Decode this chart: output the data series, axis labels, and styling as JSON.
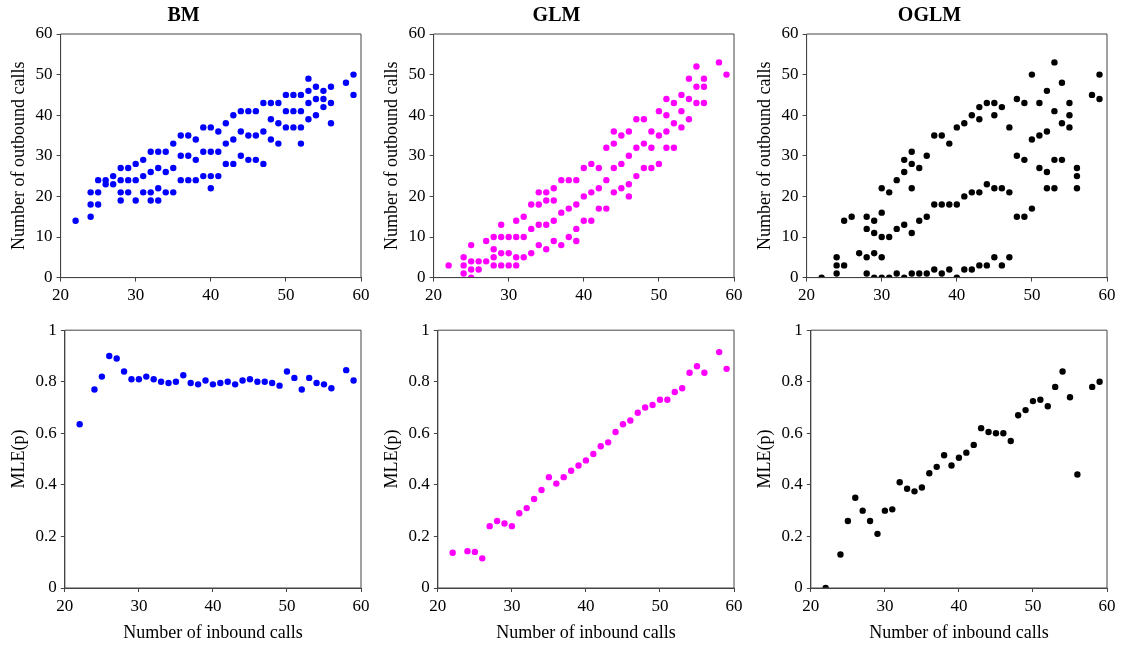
{
  "chart_data": [
    {
      "type": "scatter",
      "title": "BM",
      "ylabel": "Number of outbound calls",
      "marker": "circle",
      "xlim": [
        20,
        60
      ],
      "xticks": [
        20,
        30,
        40,
        50,
        60
      ],
      "ylim": [
        0,
        60
      ],
      "yticks": [
        0,
        10,
        20,
        30,
        40,
        50,
        60
      ],
      "series": [
        {
          "color": "#0000ff",
          "x": [
            22,
            24,
            24,
            24,
            25,
            25,
            25,
            26,
            26,
            27,
            27,
            28,
            28,
            28,
            28,
            29,
            29,
            29,
            30,
            30,
            30,
            31,
            31,
            31,
            32,
            32,
            32,
            32,
            33,
            33,
            33,
            33,
            34,
            34,
            34,
            35,
            35,
            35,
            36,
            36,
            36,
            37,
            37,
            37,
            38,
            38,
            38,
            39,
            39,
            39,
            40,
            40,
            40,
            40,
            41,
            41,
            41,
            42,
            42,
            42,
            43,
            43,
            43,
            44,
            44,
            44,
            45,
            45,
            45,
            46,
            46,
            46,
            47,
            47,
            47,
            48,
            48,
            48,
            49,
            49,
            49,
            50,
            50,
            50,
            51,
            51,
            51,
            52,
            52,
            52,
            52,
            53,
            53,
            53,
            53,
            54,
            54,
            54,
            55,
            55,
            55,
            56,
            56,
            56,
            58,
            59,
            59
          ],
          "values": [
            14,
            15,
            18,
            21,
            18,
            21,
            24,
            23,
            24,
            23,
            25,
            19,
            21,
            24,
            27,
            21,
            24,
            27,
            19,
            24,
            28,
            21,
            25,
            29,
            19,
            21,
            26,
            31,
            19,
            22,
            27,
            31,
            21,
            26,
            31,
            21,
            27,
            33,
            24,
            30,
            35,
            24,
            30,
            35,
            24,
            29,
            34,
            25,
            31,
            37,
            22,
            25,
            31,
            37,
            25,
            31,
            36,
            28,
            33,
            38,
            28,
            34,
            40,
            30,
            36,
            41,
            29,
            35,
            41,
            29,
            35,
            41,
            28,
            36,
            43,
            34,
            39,
            43,
            33,
            38,
            43,
            37,
            41,
            45,
            37,
            41,
            45,
            33,
            37,
            41,
            45,
            39,
            43,
            46,
            49,
            40,
            44,
            47,
            42,
            44,
            46,
            38,
            43,
            47,
            48,
            45,
            50
          ]
        }
      ]
    },
    {
      "type": "scatter",
      "title": "GLM",
      "ylabel": "Number of outbound calls",
      "marker": "circle",
      "xlim": [
        20,
        60
      ],
      "xticks": [
        20,
        30,
        40,
        50,
        60
      ],
      "ylim": [
        0,
        60
      ],
      "yticks": [
        0,
        10,
        20,
        30,
        40,
        50,
        60
      ],
      "series": [
        {
          "color": "#ff00ff",
          "x": [
            22,
            24,
            24,
            24,
            25,
            25,
            25,
            25,
            26,
            26,
            27,
            27,
            28,
            28,
            28,
            28,
            29,
            29,
            29,
            29,
            30,
            30,
            30,
            31,
            31,
            31,
            31,
            32,
            32,
            32,
            33,
            33,
            33,
            34,
            34,
            34,
            34,
            35,
            35,
            35,
            35,
            36,
            36,
            36,
            36,
            37,
            37,
            37,
            38,
            38,
            38,
            39,
            39,
            39,
            39,
            40,
            40,
            40,
            41,
            41,
            41,
            42,
            42,
            42,
            43,
            43,
            43,
            44,
            44,
            44,
            44,
            45,
            45,
            45,
            46,
            46,
            46,
            46,
            47,
            47,
            47,
            48,
            48,
            48,
            49,
            49,
            49,
            50,
            50,
            50,
            51,
            51,
            51,
            51,
            52,
            52,
            52,
            53,
            53,
            53,
            54,
            54,
            54,
            55,
            55,
            55,
            56,
            56,
            56,
            58,
            59
          ],
          "values": [
            3,
            1,
            3,
            5,
            0,
            2,
            4,
            8,
            2,
            4,
            4,
            9,
            3,
            5,
            7,
            10,
            3,
            6,
            10,
            13,
            3,
            6,
            10,
            3,
            5,
            10,
            14,
            5,
            10,
            15,
            6,
            12,
            18,
            8,
            13,
            18,
            21,
            7,
            13,
            19,
            21,
            9,
            14,
            19,
            22,
            8,
            16,
            24,
            10,
            17,
            24,
            9,
            12,
            18,
            24,
            14,
            20,
            27,
            14,
            21,
            28,
            17,
            22,
            27,
            17,
            24,
            32,
            21,
            27,
            33,
            36,
            22,
            28,
            35,
            20,
            23,
            30,
            36,
            25,
            32,
            39,
            27,
            33,
            39,
            27,
            32,
            36,
            28,
            35,
            41,
            32,
            36,
            40,
            44,
            32,
            38,
            43,
            37,
            41,
            45,
            39,
            44,
            49,
            43,
            47,
            52,
            43,
            47,
            49,
            53,
            50
          ]
        }
      ]
    },
    {
      "type": "scatter",
      "title": "OGLM",
      "ylabel": "Number of outbound calls",
      "marker": "circle",
      "xlim": [
        20,
        60
      ],
      "xticks": [
        20,
        30,
        40,
        50,
        60
      ],
      "ylim": [
        0,
        60
      ],
      "yticks": [
        0,
        10,
        20,
        30,
        40,
        50,
        60
      ],
      "series": [
        {
          "color": "#000000",
          "x": [
            22,
            24,
            24,
            24,
            25,
            25,
            26,
            27,
            28,
            28,
            28,
            28,
            29,
            29,
            29,
            29,
            30,
            30,
            30,
            30,
            30,
            31,
            31,
            31,
            32,
            32,
            32,
            33,
            33,
            33,
            33,
            34,
            34,
            34,
            34,
            34,
            35,
            35,
            35,
            36,
            36,
            36,
            37,
            37,
            37,
            38,
            38,
            38,
            39,
            39,
            39,
            40,
            40,
            40,
            41,
            41,
            41,
            42,
            42,
            42,
            43,
            43,
            43,
            43,
            44,
            44,
            44,
            45,
            45,
            45,
            45,
            46,
            46,
            46,
            47,
            47,
            47,
            48,
            48,
            48,
            49,
            49,
            49,
            50,
            50,
            50,
            51,
            51,
            51,
            52,
            52,
            52,
            52,
            53,
            53,
            53,
            53,
            54,
            54,
            54,
            55,
            55,
            55,
            56,
            56,
            56,
            58,
            59,
            59
          ],
          "values": [
            0,
            1,
            3,
            5,
            3,
            14,
            15,
            6,
            1,
            5,
            12,
            15,
            0,
            6,
            11,
            14,
            0,
            5,
            10,
            16,
            22,
            0,
            10,
            21,
            1,
            12,
            24,
            0,
            13,
            26,
            29,
            1,
            11,
            22,
            28,
            31,
            1,
            14,
            27,
            1,
            15,
            30,
            2,
            18,
            35,
            1,
            18,
            35,
            2,
            18,
            33,
            0,
            18,
            37,
            2,
            20,
            38,
            2,
            21,
            40,
            3,
            21,
            39,
            42,
            3,
            23,
            43,
            5,
            22,
            40,
            43,
            3,
            22,
            42,
            5,
            21,
            37,
            15,
            30,
            44,
            15,
            29,
            43,
            17,
            34,
            50,
            27,
            35,
            43,
            22,
            26,
            36,
            46,
            22,
            29,
            41,
            53,
            29,
            38,
            48,
            37,
            40,
            43,
            22,
            25,
            27,
            45,
            44,
            50
          ]
        }
      ]
    },
    {
      "type": "scatter",
      "xlabel": "Number of inbound calls",
      "ylabel": "MLE(p)",
      "marker": "circle",
      "xlim": [
        20,
        60
      ],
      "xticks": [
        20,
        30,
        40,
        50,
        60
      ],
      "ylim": [
        0,
        1
      ],
      "yticks": [
        0,
        0.2,
        0.4,
        0.6,
        0.8,
        1
      ],
      "series": [
        {
          "color": "#0000ff",
          "x": [
            22,
            24,
            25,
            26,
            27,
            28,
            29,
            30,
            31,
            32,
            33,
            34,
            35,
            36,
            37,
            38,
            39,
            40,
            41,
            42,
            43,
            44,
            45,
            46,
            47,
            48,
            49,
            50,
            51,
            52,
            53,
            54,
            55,
            56,
            58,
            59
          ],
          "values": [
            0.635,
            0.77,
            0.82,
            0.9,
            0.89,
            0.84,
            0.81,
            0.81,
            0.82,
            0.81,
            0.8,
            0.795,
            0.8,
            0.825,
            0.795,
            0.79,
            0.805,
            0.79,
            0.795,
            0.8,
            0.79,
            0.805,
            0.81,
            0.8,
            0.8,
            0.795,
            0.785,
            0.84,
            0.815,
            0.77,
            0.815,
            0.795,
            0.79,
            0.775,
            0.845,
            0.805
          ]
        }
      ]
    },
    {
      "type": "scatter",
      "xlabel": "Number of inbound calls",
      "ylabel": "MLE(p)",
      "marker": "circle",
      "xlim": [
        20,
        60
      ],
      "xticks": [
        20,
        30,
        40,
        50,
        60
      ],
      "ylim": [
        0,
        1
      ],
      "yticks": [
        0,
        0.2,
        0.4,
        0.6,
        0.8,
        1
      ],
      "series": [
        {
          "color": "#ff00ff",
          "x": [
            22,
            24,
            25,
            26,
            27,
            28,
            29,
            30,
            31,
            32,
            33,
            34,
            35,
            36,
            37,
            38,
            39,
            40,
            41,
            42,
            43,
            44,
            45,
            46,
            47,
            48,
            49,
            50,
            51,
            52,
            53,
            54,
            55,
            56,
            58,
            59
          ],
          "values": [
            0.137,
            0.143,
            0.14,
            0.115,
            0.24,
            0.26,
            0.25,
            0.24,
            0.29,
            0.31,
            0.345,
            0.38,
            0.43,
            0.405,
            0.43,
            0.455,
            0.475,
            0.495,
            0.52,
            0.55,
            0.565,
            0.605,
            0.635,
            0.65,
            0.68,
            0.7,
            0.71,
            0.73,
            0.73,
            0.76,
            0.775,
            0.835,
            0.86,
            0.835,
            0.915,
            0.85
          ]
        }
      ]
    },
    {
      "type": "scatter",
      "xlabel": "Number of inbound calls",
      "ylabel": "MLE(p)",
      "marker": "circle",
      "xlim": [
        20,
        60
      ],
      "xticks": [
        20,
        30,
        40,
        50,
        60
      ],
      "ylim": [
        0,
        1
      ],
      "yticks": [
        0,
        0.2,
        0.4,
        0.6,
        0.8,
        1
      ],
      "series": [
        {
          "color": "#000000",
          "x": [
            22,
            24,
            25,
            26,
            27,
            28,
            29,
            30,
            31,
            32,
            33,
            34,
            35,
            36,
            37,
            38,
            39,
            40,
            41,
            42,
            43,
            44,
            45,
            46,
            47,
            48,
            49,
            50,
            51,
            52,
            53,
            54,
            55,
            56,
            58,
            59
          ],
          "values": [
            0,
            0.13,
            0.26,
            0.35,
            0.3,
            0.26,
            0.21,
            0.3,
            0.305,
            0.41,
            0.385,
            0.375,
            0.39,
            0.445,
            0.47,
            0.515,
            0.475,
            0.505,
            0.525,
            0.555,
            0.62,
            0.605,
            0.6,
            0.6,
            0.57,
            0.67,
            0.69,
            0.725,
            0.73,
            0.705,
            0.78,
            0.84,
            0.74,
            0.44,
            0.78,
            0.8
          ]
        }
      ]
    }
  ]
}
